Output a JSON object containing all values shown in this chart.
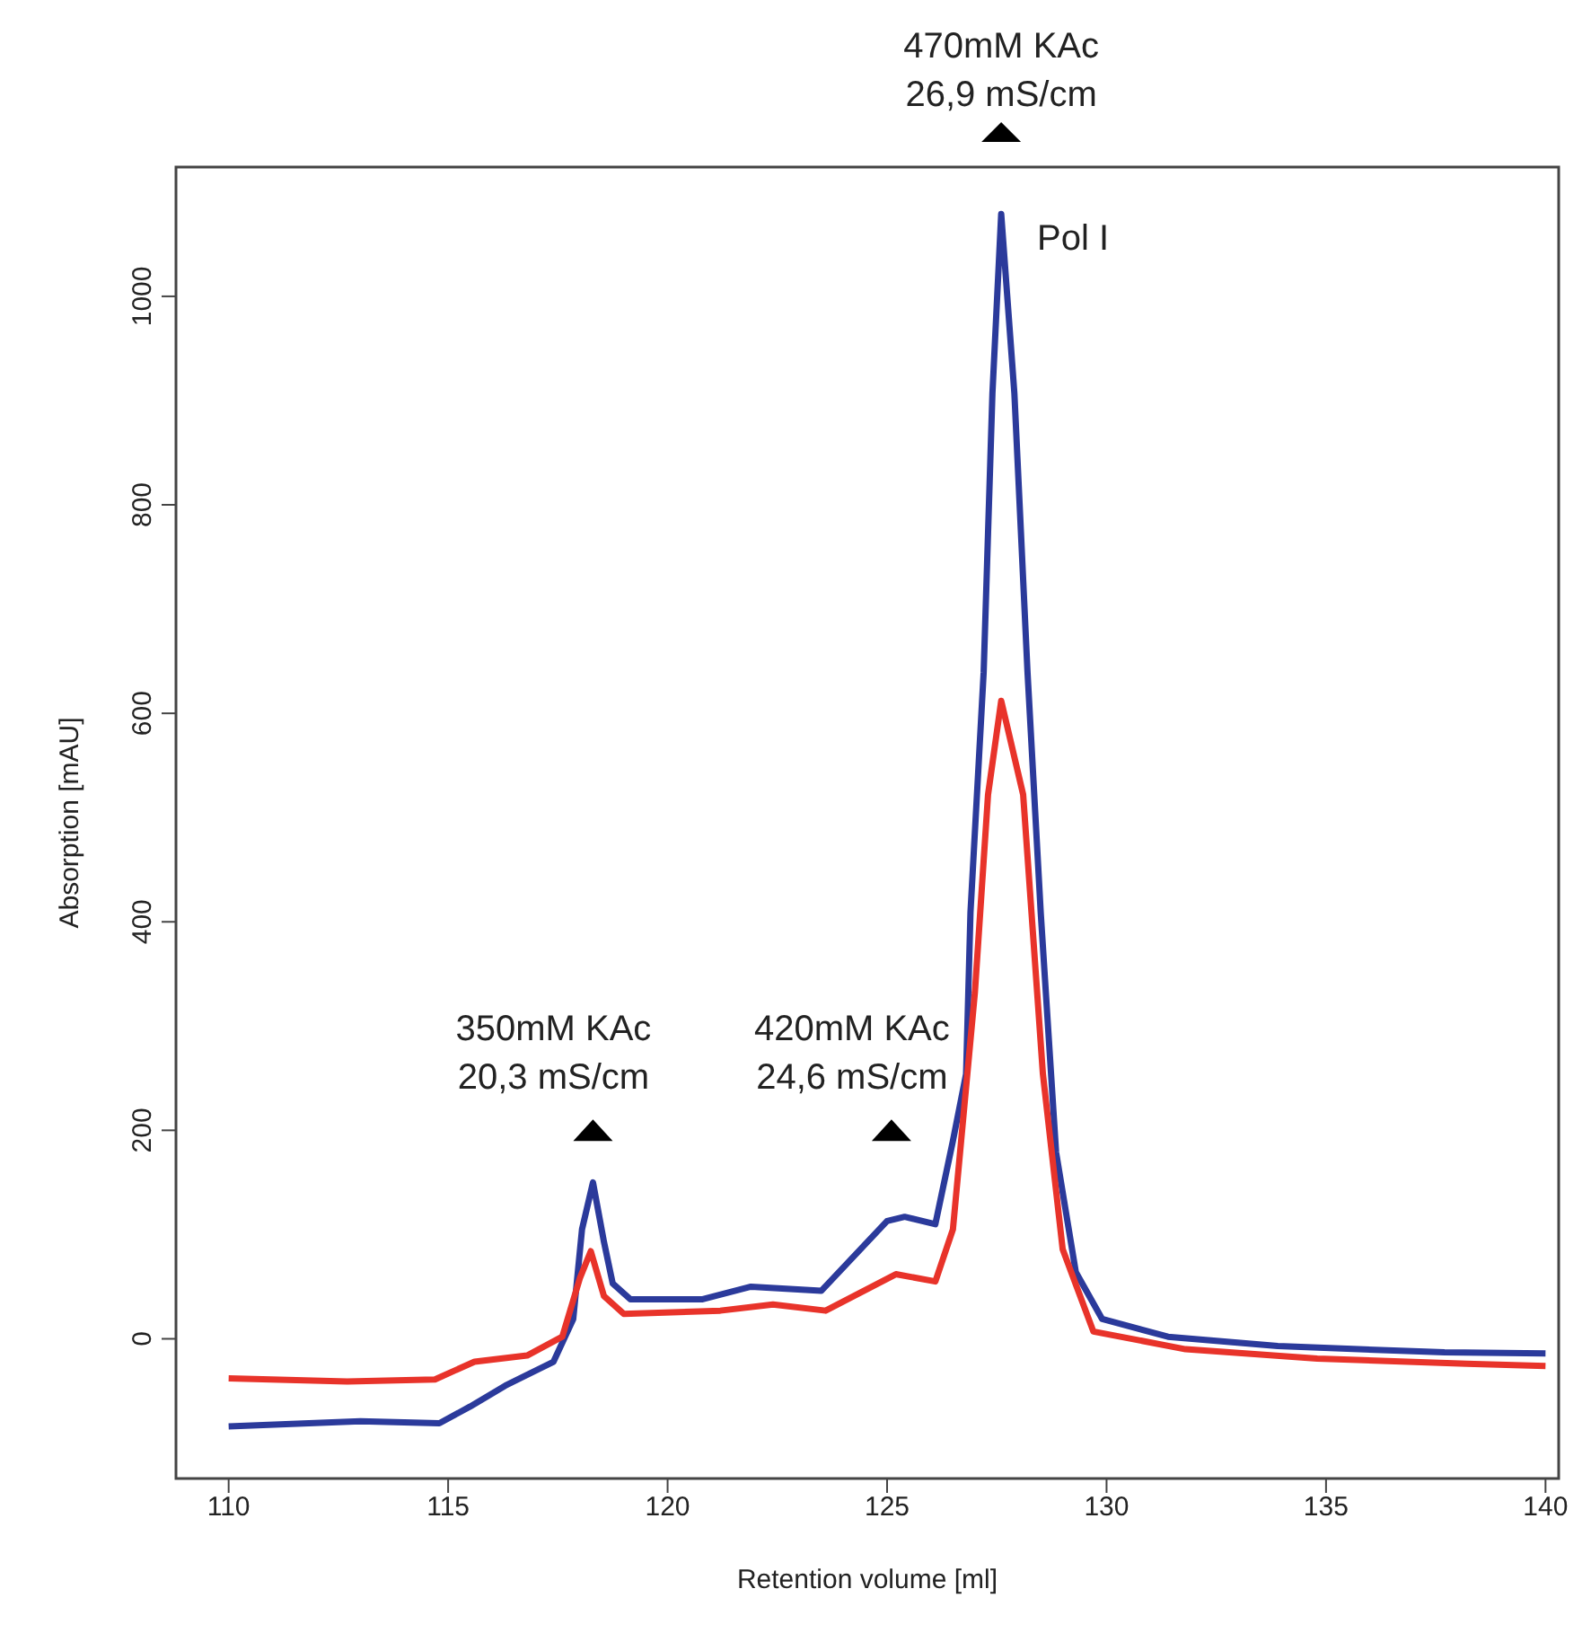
{
  "chart_data": {
    "type": "line",
    "xlabel": "Retention volume [ml]",
    "ylabel": "Absorption [mAU]",
    "xlim": [
      108.8,
      140.3
    ],
    "ylim": [
      -134,
      1124
    ],
    "xticks": [
      110,
      115,
      120,
      125,
      130,
      135,
      140
    ],
    "yticks": [
      0,
      200,
      400,
      600,
      800,
      1000
    ],
    "marker": "none",
    "line_style": "solid",
    "series": [
      {
        "color": "#2b3a9b",
        "x": [
          110,
          113,
          114.8,
          115.5,
          116.3,
          117.4,
          117.85,
          118.05,
          118.3,
          118.55,
          118.75,
          119.15,
          120.8,
          121.9,
          123.5,
          125,
          125.4,
          126.1,
          126.5,
          126.8,
          126.9,
          127.2,
          127.4,
          127.6,
          127.9,
          128.2,
          128.5,
          128.85,
          129.3,
          129.9,
          131.4,
          133.9,
          137.7,
          140
        ],
        "values": [
          -84,
          -79,
          -81,
          -65,
          -45,
          -22,
          19,
          105,
          150,
          93,
          53,
          38,
          38,
          50,
          46,
          113,
          117,
          110,
          190,
          254,
          409,
          639,
          907,
          1079,
          907,
          639,
          409,
          179,
          64,
          19,
          2,
          -7,
          -13,
          -14
        ]
      },
      {
        "color": "#e8332a",
        "x": [
          110,
          112.7,
          114.7,
          115.6,
          116.8,
          117.6,
          118,
          118.25,
          118.55,
          119,
          121.2,
          122.4,
          123.6,
          125.2,
          126.1,
          126.5,
          127,
          127.3,
          127.6,
          128.1,
          128.55,
          129,
          129.7,
          131.8,
          134.8,
          138.2,
          140
        ],
        "values": [
          -38,
          -41,
          -39,
          -22,
          -16,
          2,
          58,
          84,
          41,
          24,
          27,
          33,
          27,
          62,
          55,
          105,
          332,
          522,
          612,
          522,
          254,
          86,
          7,
          -10,
          -19,
          -24,
          -26
        ]
      }
    ],
    "annotations": [
      {
        "text": "350mM KAc\n20,3 mS/cm",
        "x": 118.3,
        "y": 200
      },
      {
        "text": "420mM KAc\n24,6 mS/cm",
        "x": 125.1,
        "y": 200
      },
      {
        "text": "470mM KAc\n26,9 mS/cm",
        "x": 127.6,
        "y": 1079
      },
      {
        "text": "Pol I",
        "x": 127.6,
        "y": 1079
      }
    ]
  }
}
